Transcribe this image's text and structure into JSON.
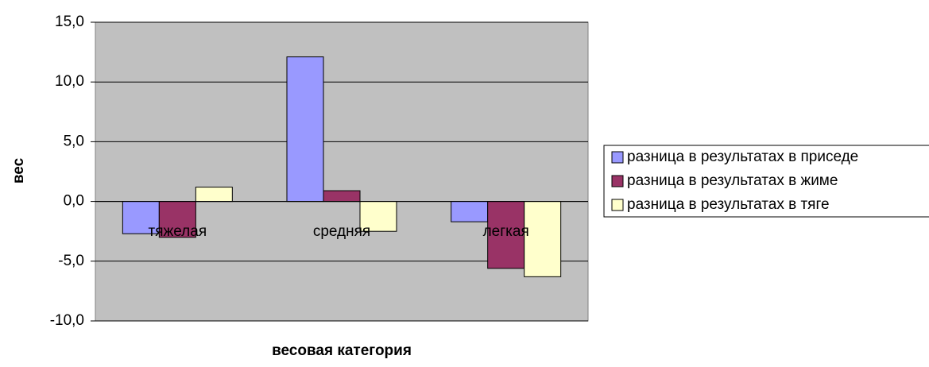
{
  "chart_data": {
    "type": "bar",
    "y_label": "вес",
    "x_label": "весовая категория",
    "categories": [
      "тяжелая",
      "средняя",
      "легкая"
    ],
    "series": [
      {
        "name": "разница в результатах в приседе",
        "color": "#9999ff",
        "values": [
          -2.7,
          12.1,
          -1.7
        ]
      },
      {
        "name": "разница в результатах в жиме",
        "color": "#993366",
        "values": [
          -3.0,
          0.9,
          -5.6
        ]
      },
      {
        "name": "разница в результатах в тяге",
        "color": "#ffffcc",
        "values": [
          1.2,
          -2.5,
          -6.3
        ]
      }
    ],
    "ylim": [
      -10,
      15
    ],
    "yticks": [
      {
        "value": -10,
        "label": "-10,0"
      },
      {
        "value": -5,
        "label": "-5,0"
      },
      {
        "value": 0,
        "label": "0,0"
      },
      {
        "value": 5,
        "label": "5,0"
      },
      {
        "value": 10,
        "label": "10,0"
      },
      {
        "value": 15,
        "label": "15,0"
      }
    ],
    "grid": true,
    "legend": "right",
    "plot_background": "#c0c0c0"
  }
}
